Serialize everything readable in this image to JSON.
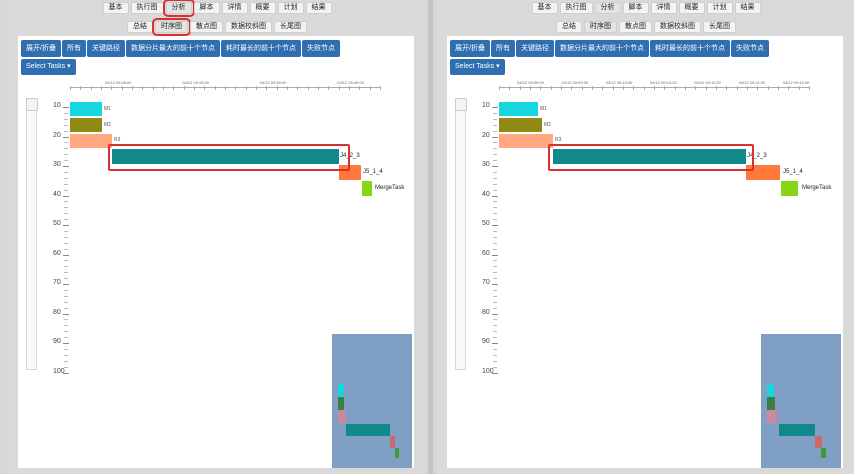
{
  "tabs_top": [
    "基本",
    "执行图",
    "分析",
    "脚本",
    "详情",
    "概要",
    "计划",
    "结果"
  ],
  "tabs_sub": [
    "总结",
    "时序图",
    "散点图",
    "数据校斜图",
    "长尾图"
  ],
  "buttons": [
    "展开/折叠",
    "所有",
    "关键路径",
    "数据分片最大的前十个节点",
    "耗时最长的前十个节点",
    "失败节点"
  ],
  "select_label": "Select Tasks ▾",
  "y_ticks": [
    "10",
    "20",
    "30",
    "40",
    "50",
    "60",
    "70",
    "80",
    "90",
    "100"
  ],
  "colors": {
    "cyan": "#18d6dd",
    "olive": "#8f8a14",
    "salmon": "#ffa882",
    "teal": "#11898b",
    "orange": "#ff7a3a",
    "green": "#88d416",
    "button": "#2f6fb1",
    "minimap": "#7f9fc4",
    "highlight": "#d93030"
  },
  "panes": [
    {
      "active_top": "分析",
      "active_sub": "时序图",
      "highlight_top": true,
      "highlight_sub": true,
      "x_ticks": [
        "04/12 09:08:00",
        "04/12 09:19:00",
        "04/12 09:30:00",
        "04/12 09:40:00"
      ],
      "tasks": [
        {
          "label": "M1",
          "color": "cyan"
        },
        {
          "label": "M2",
          "color": "olive"
        },
        {
          "label": "R3",
          "color": "salmon"
        },
        {
          "label": "J4_2_3",
          "color": "teal"
        },
        {
          "label": "J5_1_4",
          "color": "orange"
        },
        {
          "label": "MergeTask",
          "color": "green"
        }
      ]
    },
    {
      "active_top": "分析",
      "active_sub": "时序图",
      "highlight_top": false,
      "highlight_sub": false,
      "x_ticks": [
        "04/12 09:09:00",
        "04/12 09:09:30",
        "04/12 09:10:00",
        "04/12 09:10:30",
        "04/12 09:11:00",
        "04/12 09:11:30",
        "04/12 09:12:00"
      ],
      "tasks": [
        {
          "label": "M1",
          "color": "cyan"
        },
        {
          "label": "M2",
          "color": "olive"
        },
        {
          "label": "R3",
          "color": "salmon"
        },
        {
          "label": "J4_2_3",
          "color": "teal"
        },
        {
          "label": "J5_1_4",
          "color": "orange"
        },
        {
          "label": "MergeTask",
          "color": "green"
        }
      ]
    }
  ]
}
